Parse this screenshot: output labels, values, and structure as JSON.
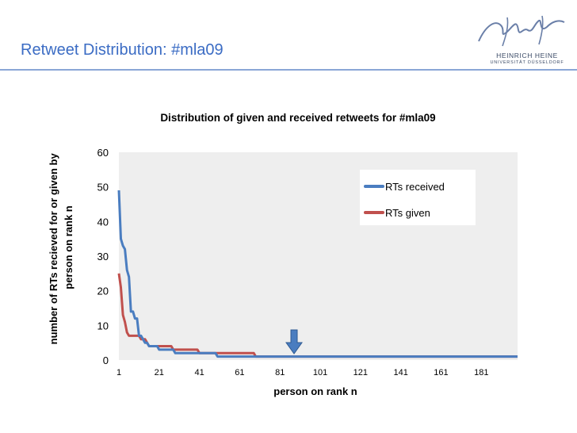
{
  "slide": {
    "title": "Retweet Distribution: #mla09",
    "logo_line1": "HEINRICH HEINE",
    "logo_line2": "UNIVERSITÄT DÜSSELDORF"
  },
  "colors": {
    "title": "#3b6cc4",
    "rt_received": "#4a7dc0",
    "rt_given": "#c0504d",
    "plot_bg": "#eeeeee",
    "arrow": "#4a7dc0"
  },
  "chart_data": {
    "type": "line",
    "title": "Distribution of given and received retweets for #mla09",
    "xlabel": "person on rank n",
    "ylabel_lines": [
      "number of RTs recieved for or given by",
      "person on rank n"
    ],
    "x_ticks": [
      "1",
      "21",
      "41",
      "61",
      "81",
      "101",
      "121",
      "141",
      "161",
      "181"
    ],
    "y_ticks": [
      "0",
      "10",
      "20",
      "30",
      "40",
      "50",
      "60"
    ],
    "xlim": [
      1,
      199
    ],
    "ylim": [
      0,
      60
    ],
    "legend_position": "top-right",
    "annotation_arrow_x": 88,
    "series": [
      {
        "name": "RTs received",
        "points": [
          [
            1,
            49
          ],
          [
            2,
            35
          ],
          [
            3,
            33
          ],
          [
            4,
            32
          ],
          [
            5,
            26
          ],
          [
            6,
            24
          ],
          [
            7,
            14
          ],
          [
            8,
            14
          ],
          [
            9,
            12
          ],
          [
            10,
            12
          ],
          [
            11,
            7
          ],
          [
            12,
            7
          ],
          [
            13,
            6
          ],
          [
            14,
            5
          ],
          [
            15,
            5
          ],
          [
            16,
            4
          ],
          [
            20,
            4
          ],
          [
            21,
            3
          ],
          [
            28,
            3
          ],
          [
            29,
            2
          ],
          [
            40,
            2
          ],
          [
            41,
            2
          ],
          [
            49,
            2
          ],
          [
            50,
            1
          ],
          [
            199,
            1
          ]
        ]
      },
      {
        "name": "RTs given",
        "points": [
          [
            1,
            25
          ],
          [
            2,
            21
          ],
          [
            3,
            13
          ],
          [
            4,
            11
          ],
          [
            5,
            8
          ],
          [
            6,
            7
          ],
          [
            7,
            7
          ],
          [
            11,
            7
          ],
          [
            12,
            6
          ],
          [
            14,
            6
          ],
          [
            15,
            5
          ],
          [
            16,
            4
          ],
          [
            27,
            4
          ],
          [
            28,
            3
          ],
          [
            40,
            3
          ],
          [
            41,
            2
          ],
          [
            68,
            2
          ],
          [
            69,
            1
          ],
          [
            199,
            1
          ]
        ]
      }
    ]
  }
}
